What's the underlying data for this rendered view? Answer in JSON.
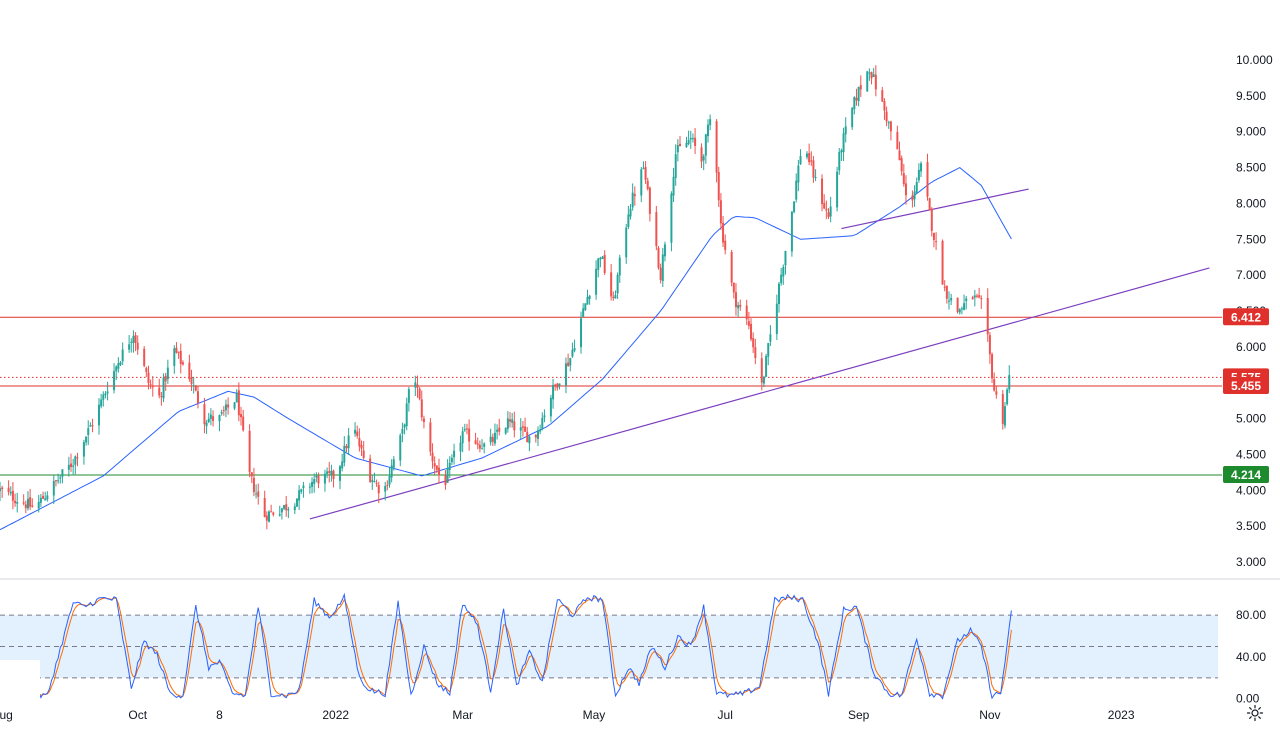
{
  "colors": {
    "up": "#26a69a",
    "down": "#ef5350",
    "ma": "#2962ff",
    "trendline": "#7b3fbf",
    "resistance": "#e0302b",
    "support": "#1e8a2e",
    "stoch_k": "#2962ff",
    "stoch_d": "#ff6d00",
    "stoch_band": "#e3f0fd",
    "axis_text": "#131722",
    "separator": "#d1d4dc"
  },
  "icons": {
    "settings": "gear-icon"
  },
  "chart_data": [
    {
      "type": "candlestick",
      "title": "",
      "ylim": [
        2.85,
        10.35
      ],
      "y_ticks": [
        "3.000",
        "3.500",
        "4.000",
        "4.500",
        "5.000",
        "5.500",
        "6.000",
        "6.500",
        "7.000",
        "7.500",
        "8.000",
        "8.500",
        "9.000",
        "9.500",
        "10.000"
      ],
      "x_ticks": [
        "Aug",
        "Oct",
        "8",
        "2022",
        "Mar",
        "May",
        "Jul",
        "Sep",
        "Nov",
        "2023"
      ],
      "x_range": [
        "2021-07-29",
        "2023-02-15"
      ],
      "grid": false,
      "waypoints": [
        [
          "2021-07-29",
          4.0
        ],
        [
          "2021-08-14",
          3.75
        ],
        [
          "2021-09-01",
          4.4
        ],
        [
          "2021-09-10",
          4.95
        ],
        [
          "2021-09-22",
          5.8
        ],
        [
          "2021-09-29",
          6.2
        ],
        [
          "2021-10-06",
          5.5
        ],
        [
          "2021-10-11",
          5.3
        ],
        [
          "2021-10-18",
          5.95
        ],
        [
          "2021-10-25",
          5.6
        ],
        [
          "2021-11-01",
          5.0
        ],
        [
          "2021-11-08",
          5.0
        ],
        [
          "2021-11-16",
          5.3
        ],
        [
          "2021-11-22",
          4.2
        ],
        [
          "2021-11-29",
          3.65
        ],
        [
          "2021-12-11",
          3.8
        ],
        [
          "2021-12-22",
          4.15
        ],
        [
          "2022-01-01",
          4.2
        ],
        [
          "2022-01-09",
          4.9
        ],
        [
          "2022-01-16",
          4.25
        ],
        [
          "2022-01-23",
          3.95
        ],
        [
          "2022-02-01",
          4.8
        ],
        [
          "2022-02-06",
          5.7
        ],
        [
          "2022-02-13",
          4.6
        ],
        [
          "2022-02-20",
          4.05
        ],
        [
          "2022-03-01",
          4.8
        ],
        [
          "2022-03-12",
          4.6
        ],
        [
          "2022-03-22",
          4.95
        ],
        [
          "2022-04-03",
          4.7
        ],
        [
          "2022-04-12",
          5.4
        ],
        [
          "2022-04-20",
          5.85
        ],
        [
          "2022-04-27",
          6.6
        ],
        [
          "2022-05-04",
          7.3
        ],
        [
          "2022-05-10",
          6.6
        ],
        [
          "2022-05-17",
          7.9
        ],
        [
          "2022-05-24",
          8.5
        ],
        [
          "2022-06-01",
          7.0
        ],
        [
          "2022-06-08",
          8.7
        ],
        [
          "2022-06-15",
          8.9
        ],
        [
          "2022-06-20",
          8.6
        ],
        [
          "2022-06-25",
          9.3
        ],
        [
          "2022-06-29",
          7.7
        ],
        [
          "2022-07-05",
          6.7
        ],
        [
          "2022-07-12",
          6.3
        ],
        [
          "2022-07-18",
          5.45
        ],
        [
          "2022-07-24",
          6.5
        ],
        [
          "2022-07-31",
          7.7
        ],
        [
          "2022-08-06",
          8.9
        ],
        [
          "2022-08-12",
          8.3
        ],
        [
          "2022-08-18",
          7.8
        ],
        [
          "2022-08-24",
          8.8
        ],
        [
          "2022-08-31",
          9.5
        ],
        [
          "2022-09-06",
          9.9
        ],
        [
          "2022-09-14",
          9.2
        ],
        [
          "2022-09-20",
          8.6
        ],
        [
          "2022-09-24",
          7.9
        ],
        [
          "2022-09-30",
          8.5
        ],
        [
          "2022-10-05",
          7.7
        ],
        [
          "2022-10-11",
          6.8
        ],
        [
          "2022-10-17",
          6.5
        ],
        [
          "2022-10-24",
          6.7
        ],
        [
          "2022-10-29",
          6.55
        ],
        [
          "2022-11-03",
          5.4
        ],
        [
          "2022-11-07",
          5.0
        ],
        [
          "2022-11-10",
          5.575
        ]
      ],
      "moving_average": [
        [
          "2021-07-29",
          3.45
        ],
        [
          "2021-09-15",
          4.2
        ],
        [
          "2021-10-20",
          5.1
        ],
        [
          "2021-11-12",
          5.38
        ],
        [
          "2021-11-24",
          5.3
        ],
        [
          "2021-12-10",
          5.0
        ],
        [
          "2022-01-10",
          4.45
        ],
        [
          "2022-02-10",
          4.2
        ],
        [
          "2022-03-10",
          4.45
        ],
        [
          "2022-04-10",
          4.9
        ],
        [
          "2022-05-05",
          5.55
        ],
        [
          "2022-06-01",
          6.5
        ],
        [
          "2022-06-25",
          7.55
        ],
        [
          "2022-07-05",
          7.82
        ],
        [
          "2022-07-15",
          7.8
        ],
        [
          "2022-08-05",
          7.5
        ],
        [
          "2022-08-30",
          7.55
        ],
        [
          "2022-09-20",
          7.95
        ],
        [
          "2022-10-05",
          8.3
        ],
        [
          "2022-10-18",
          8.5
        ],
        [
          "2022-10-28",
          8.25
        ],
        [
          "2022-11-12",
          7.45
        ]
      ],
      "trendlines": [
        {
          "name": "rising-trendline",
          "from": [
            "2021-12-20",
            3.6
          ],
          "to": [
            "2023-02-11",
            7.1
          ]
        },
        {
          "name": "short-trendline",
          "from": [
            "2022-08-24",
            7.65
          ],
          "to": [
            "2022-11-19",
            8.2
          ]
        }
      ],
      "horizontal_levels": [
        {
          "name": "resistance-level",
          "value": 6.412,
          "label": "6.412",
          "style": "solid",
          "color": "#e0302b"
        },
        {
          "name": "last-price-level",
          "value": 5.575,
          "label": "5.575",
          "style": "dotted",
          "color": "#e0302b"
        },
        {
          "name": "pivot-level",
          "value": 5.455,
          "label": "5.455",
          "style": "solid",
          "color": "#e0302b"
        },
        {
          "name": "support-level",
          "value": 4.214,
          "label": "4.214",
          "style": "solid",
          "color": "#1e8a2e"
        }
      ]
    },
    {
      "type": "line",
      "title": "",
      "ylim": [
        -7,
        107
      ],
      "y_ticks": [
        "0.00",
        "40.00",
        "80.00"
      ],
      "band": [
        20,
        80
      ],
      "levels": [
        20,
        50,
        80
      ],
      "cycles": [
        [
          "2021-07-29",
          10
        ],
        [
          "2021-08-03",
          5
        ],
        [
          "2021-08-09",
          22
        ],
        [
          "2021-08-14",
          3
        ],
        [
          "2021-08-20",
          3
        ],
        [
          "2021-08-27",
          55
        ],
        [
          "2021-09-01",
          92
        ],
        [
          "2021-09-06",
          88
        ],
        [
          "2021-09-14",
          96
        ],
        [
          "2021-09-21",
          95
        ],
        [
          "2021-09-28",
          10
        ],
        [
          "2021-10-04",
          55
        ],
        [
          "2021-10-10",
          42
        ],
        [
          "2021-10-16",
          5
        ],
        [
          "2021-10-22",
          3
        ],
        [
          "2021-10-28",
          88
        ],
        [
          "2021-11-03",
          30
        ],
        [
          "2021-11-08",
          35
        ],
        [
          "2021-11-14",
          5
        ],
        [
          "2021-11-20",
          3
        ],
        [
          "2021-11-26",
          88
        ],
        [
          "2021-12-02",
          5
        ],
        [
          "2021-12-09",
          3
        ],
        [
          "2021-12-15",
          8
        ],
        [
          "2021-12-22",
          94
        ],
        [
          "2021-12-29",
          78
        ],
        [
          "2022-01-05",
          97
        ],
        [
          "2022-01-12",
          20
        ],
        [
          "2022-01-17",
          8
        ],
        [
          "2022-01-24",
          5
        ],
        [
          "2022-01-30",
          92
        ],
        [
          "2022-02-05",
          3
        ],
        [
          "2022-02-11",
          50
        ],
        [
          "2022-02-17",
          15
        ],
        [
          "2022-02-23",
          5
        ],
        [
          "2022-03-01",
          92
        ],
        [
          "2022-03-08",
          70
        ],
        [
          "2022-03-14",
          8
        ],
        [
          "2022-03-20",
          85
        ],
        [
          "2022-03-26",
          12
        ],
        [
          "2022-04-01",
          45
        ],
        [
          "2022-04-07",
          15
        ],
        [
          "2022-04-14",
          95
        ],
        [
          "2022-04-21",
          80
        ],
        [
          "2022-04-28",
          97
        ],
        [
          "2022-05-05",
          95
        ],
        [
          "2022-05-11",
          3
        ],
        [
          "2022-05-17",
          30
        ],
        [
          "2022-05-22",
          15
        ],
        [
          "2022-05-28",
          50
        ],
        [
          "2022-06-03",
          30
        ],
        [
          "2022-06-09",
          60
        ],
        [
          "2022-06-15",
          50
        ],
        [
          "2022-06-21",
          88
        ],
        [
          "2022-06-27",
          5
        ],
        [
          "2022-07-03",
          3
        ],
        [
          "2022-07-10",
          5
        ],
        [
          "2022-07-17",
          12
        ],
        [
          "2022-07-24",
          94
        ],
        [
          "2022-07-30",
          97
        ],
        [
          "2022-08-06",
          95
        ],
        [
          "2022-08-13",
          55
        ],
        [
          "2022-08-18",
          5
        ],
        [
          "2022-08-25",
          85
        ],
        [
          "2022-08-31",
          88
        ],
        [
          "2022-09-08",
          25
        ],
        [
          "2022-09-15",
          5
        ],
        [
          "2022-09-21",
          3
        ],
        [
          "2022-09-28",
          58
        ],
        [
          "2022-10-04",
          5
        ],
        [
          "2022-10-10",
          3
        ],
        [
          "2022-10-17",
          55
        ],
        [
          "2022-10-23",
          65
        ],
        [
          "2022-10-28",
          50
        ],
        [
          "2022-11-02",
          3
        ],
        [
          "2022-11-06",
          5
        ],
        [
          "2022-11-11",
          82
        ]
      ],
      "series": [
        {
          "key": "k",
          "color": "#2962ff"
        },
        {
          "key": "d",
          "color": "#ff6d00"
        }
      ]
    }
  ]
}
